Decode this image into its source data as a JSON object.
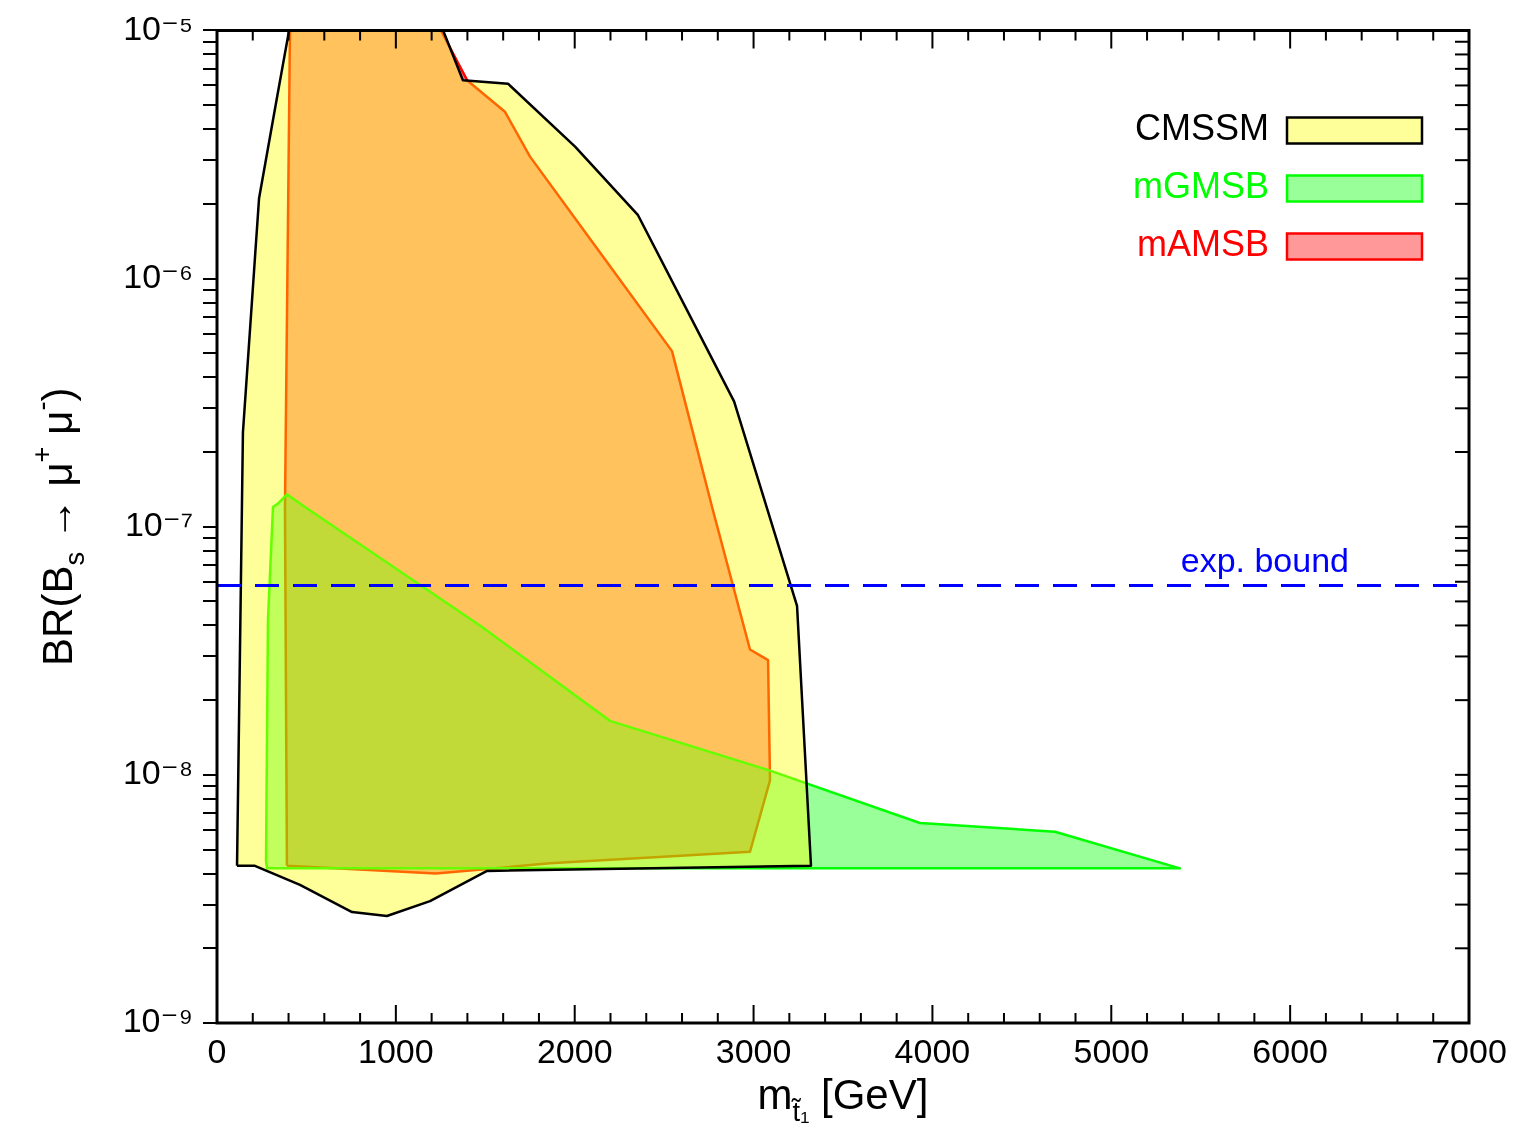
{
  "chart_data": {
    "type": "area",
    "xlabel": "m$_{t̃₁}$ [GeV]",
    "ylabel": "BR(B$_{s}$ → μ$^{+}$ μ$^{-}$)",
    "xlim": [
      0,
      7000
    ],
    "xticks": [
      0,
      {
        "value": 200,
        "label": null
      },
      {
        "value": 400,
        "label": null
      },
      {
        "value": 600,
        "label": null
      },
      {
        "value": 800,
        "label": null
      },
      1000,
      {
        "value": 1200,
        "label": null
      },
      {
        "value": 1400,
        "label": null
      },
      {
        "value": 1600,
        "label": null
      },
      {
        "value": 1800,
        "label": null
      },
      2000,
      {
        "value": 2200,
        "label": null
      },
      {
        "value": 2400,
        "label": null
      },
      {
        "value": 2600,
        "label": null
      },
      {
        "value": 2800,
        "label": null
      },
      3000,
      {
        "value": 3200,
        "label": null
      },
      {
        "value": 3400,
        "label": null
      },
      {
        "value": 3600,
        "label": null
      },
      {
        "value": 3800,
        "label": null
      },
      4000,
      {
        "value": 4200,
        "label": null
      },
      {
        "value": 4400,
        "label": null
      },
      {
        "value": 4600,
        "label": null
      },
      {
        "value": 4800,
        "label": null
      },
      5000,
      {
        "value": 5200,
        "label": null
      },
      {
        "value": 5400,
        "label": null
      },
      {
        "value": 5600,
        "label": null
      },
      {
        "value": 5800,
        "label": null
      },
      6000,
      {
        "value": 6200,
        "label": null
      },
      {
        "value": 6400,
        "label": null
      },
      {
        "value": 6600,
        "label": null
      },
      {
        "value": 6800,
        "label": null
      },
      7000
    ],
    "ylim": [
      1e-09,
      1e-05
    ],
    "yticks": [
      {
        "value": 1e-09,
        "label": "10⁻⁹"
      },
      {
        "value": 2e-09,
        "label": null
      },
      {
        "value": 3e-09,
        "label": null
      },
      {
        "value": 4e-09,
        "label": null
      },
      {
        "value": 5e-09,
        "label": null
      },
      {
        "value": 6e-09,
        "label": null
      },
      {
        "value": 7e-09,
        "label": null
      },
      {
        "value": 8e-09,
        "label": null
      },
      {
        "value": 9e-09,
        "label": null
      },
      {
        "value": 1e-08,
        "label": "10⁻⁸"
      },
      {
        "value": 2e-08,
        "label": null
      },
      {
        "value": 3e-08,
        "label": null
      },
      {
        "value": 4e-08,
        "label": null
      },
      {
        "value": 5e-08,
        "label": null
      },
      {
        "value": 6e-08,
        "label": null
      },
      {
        "value": 7e-08,
        "label": null
      },
      {
        "value": 8e-08,
        "label": null
      },
      {
        "value": 9e-08,
        "label": null
      },
      {
        "value": 1e-07,
        "label": "10⁻⁷"
      },
      {
        "value": 2e-07,
        "label": null
      },
      {
        "value": 3e-07,
        "label": null
      },
      {
        "value": 4e-07,
        "label": null
      },
      {
        "value": 5e-07,
        "label": null
      },
      {
        "value": 6e-07,
        "label": null
      },
      {
        "value": 7e-07,
        "label": null
      },
      {
        "value": 8e-07,
        "label": null
      },
      {
        "value": 9e-07,
        "label": null
      },
      {
        "value": 1e-06,
        "label": "10⁻⁶"
      },
      {
        "value": 2e-06,
        "label": null
      },
      {
        "value": 3e-06,
        "label": null
      },
      {
        "value": 4e-06,
        "label": null
      },
      {
        "value": 5e-06,
        "label": null
      },
      {
        "value": 6e-06,
        "label": null
      },
      {
        "value": 7e-06,
        "label": null
      },
      {
        "value": 8e-06,
        "label": null
      },
      {
        "value": 9e-06,
        "label": null
      },
      {
        "value": 1e-05,
        "label": "10⁻⁵"
      }
    ],
    "log": true,
    "legend": "top right",
    "marker": "none",
    "grid": false,
    "series": [
      {
        "name": "CMSSM",
        "color": "#ffff00",
        "x": [
          112,
          145,
          235,
          330,
          403,
          1264,
          1375,
          1627,
          2002,
          2354,
          2891,
          3243,
          3321,
          1510,
          1191,
          950,
          755,
          464,
          212,
          112
        ],
        "values": [
          4.3e-09,
          2.4e-07,
          2.1e-06,
          5.1e-06,
          1e-05,
          1e-05,
          6.3e-06,
          6.1e-06,
          3.4e-06,
          1.8e-06,
          3.2e-07,
          4.8e-08,
          4.3e-09,
          4.1e-09,
          3.1e-09,
          2.7e-09,
          2.8e-09,
          3.6e-09,
          4.3e-09,
          4.3e-09
        ]
      },
      {
        "name": "mGMSB",
        "color": "#00ff00",
        "x": [
          274,
          285,
          313,
          341,
          391,
          492,
          1470,
          2197,
          3092,
          3930,
          4685,
          5384,
          280,
          274
        ],
        "values": [
          4.5e-09,
          4.2e-08,
          1.2e-07,
          1.24e-07,
          1.35e-07,
          1.2e-07,
          4e-08,
          1.65e-08,
          1.04e-08,
          6.4e-09,
          5.9e-09,
          4.2e-09,
          4.2e-09,
          4.5e-09
        ]
      },
      {
        "name": "mAMSB",
        "color": "#ff0000",
        "x": [
          391,
          380,
          408,
          1252,
          1398,
          1610,
          1750,
          2544,
          2768,
          2980,
          3081,
          3092,
          3092,
          2980,
          1862,
          1224,
          391
        ],
        "values": [
          4.3e-09,
          1.2e-07,
          1e-05,
          1e-05,
          6.3e-06,
          4.7e-06,
          3.1e-06,
          5.1e-07,
          1.2e-07,
          3.2e-08,
          2.9e-08,
          9.5e-09,
          9.5e-09,
          4.9e-09,
          4.4e-09,
          4e-09,
          4.3e-09
        ]
      }
    ],
    "ref_lines": [
      {
        "axis": "y",
        "value": 5.8e-08,
        "label": "exp. bound",
        "color": "#0000ff",
        "line_style": "dashed"
      }
    ]
  }
}
